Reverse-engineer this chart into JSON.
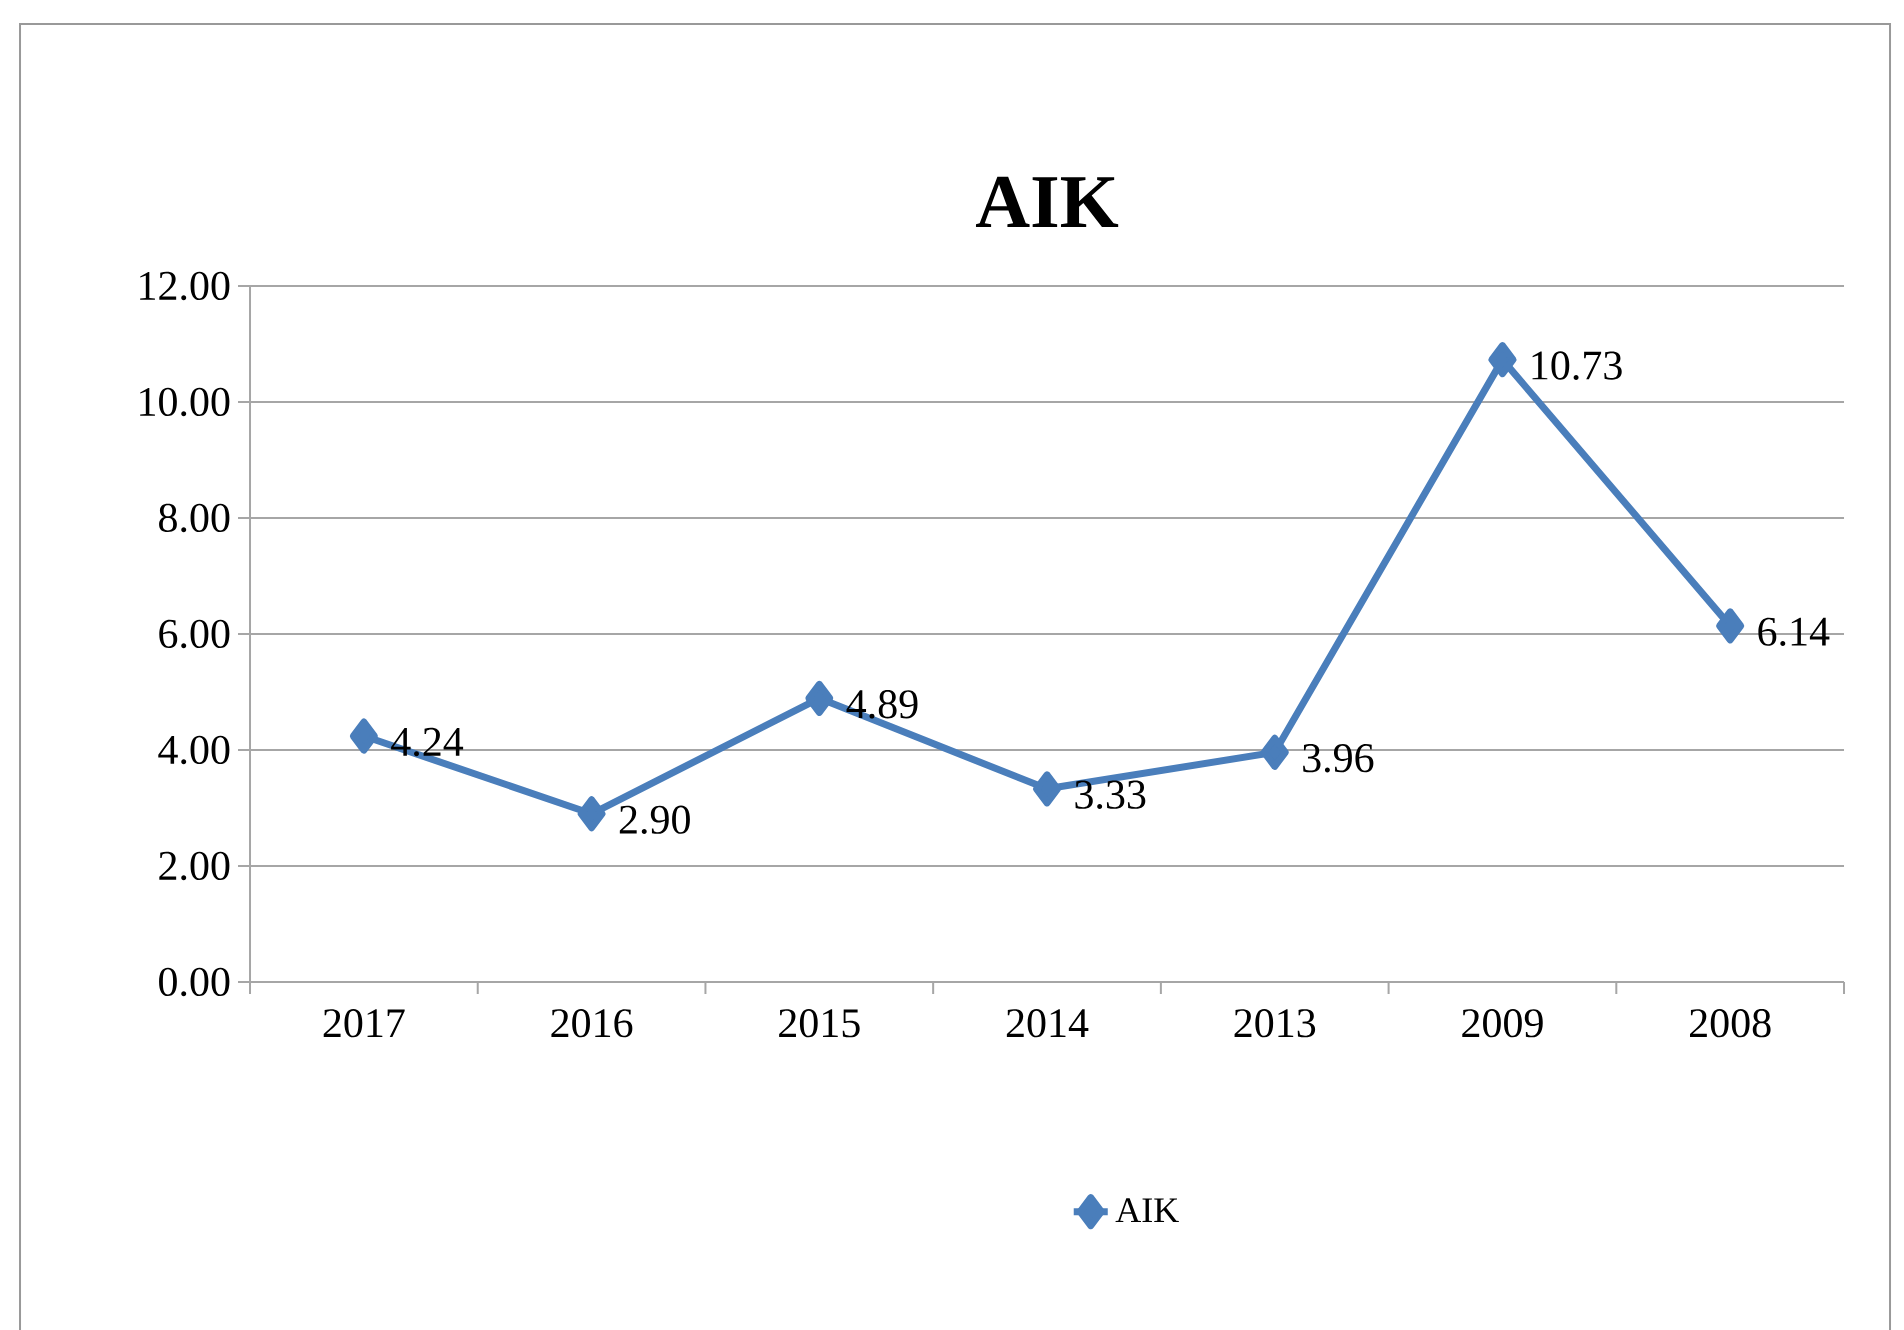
{
  "chart_data": {
    "type": "line",
    "title": "AIK",
    "categories": [
      "2017",
      "2016",
      "2015",
      "2014",
      "2013",
      "2009",
      "2008"
    ],
    "series": [
      {
        "name": "AIK",
        "color": "#4a7ebb",
        "values": [
          4.24,
          2.9,
          4.89,
          3.33,
          3.96,
          10.73,
          6.14
        ],
        "value_labels": [
          "4.24",
          "2.90",
          "4.89",
          "3.33",
          "3.96",
          "10.73",
          "6.14"
        ]
      }
    ],
    "ylim": [
      0,
      12
    ],
    "yticks": [
      {
        "value": 0,
        "label": "0.00"
      },
      {
        "value": 2,
        "label": "2.00"
      },
      {
        "value": 4,
        "label": "4.00"
      },
      {
        "value": 6,
        "label": "6.00"
      },
      {
        "value": 8,
        "label": "8.00"
      },
      {
        "value": 10,
        "label": "10.00"
      },
      {
        "value": 12,
        "label": "12.00"
      }
    ],
    "grid": "y",
    "legend": "bottom",
    "marker": "diamond",
    "line_style": "solid"
  }
}
